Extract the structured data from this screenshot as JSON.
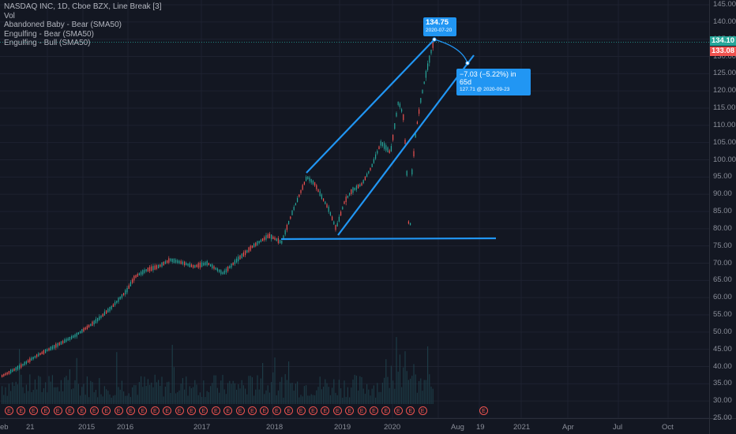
{
  "legend": {
    "title": "NASDAQ INC, 1D, Cboe BZX, Line Break [3]",
    "lines": [
      "Vol",
      "Abandoned Baby - Bear (SMA50)",
      "Engulfing - Bear (SMA50)",
      "Engulfing - Bull (SMA50)"
    ]
  },
  "price_axis": {
    "ticks": [
      "145.00",
      "140.00",
      "135.00",
      "130.00",
      "125.00",
      "120.00",
      "115.00",
      "110.00",
      "105.00",
      "100.00",
      "95.00",
      "90.00",
      "85.00",
      "80.00",
      "75.00",
      "70.00",
      "65.00",
      "60.00",
      "55.00",
      "50.00",
      "45.00",
      "40.00",
      "35.00",
      "30.00",
      "25.00"
    ],
    "last_price": "134.10",
    "line_price": "133.08",
    "colors": {
      "last": "#26a69a",
      "line": "#ef5350"
    }
  },
  "time_axis": {
    "labels": [
      "eb",
      "21",
      "2015",
      "2016",
      "2017",
      "2018",
      "2019",
      "2020",
      "Aug",
      "19",
      "2021",
      "Apr",
      "Jul",
      "Oct"
    ]
  },
  "annotations": {
    "high_label": {
      "price": "134.75",
      "date": "2020-07-20"
    },
    "measure_label": {
      "change": "−7.03 (−5.22%) in 65d",
      "detail": "127.71 @ 2020-09-23"
    }
  },
  "earnings_badges": {
    "label": "E",
    "count": 36
  },
  "colors": {
    "background": "#131722",
    "up": "#26a69a",
    "down": "#ef5350",
    "drawing": "#2196f3"
  }
}
